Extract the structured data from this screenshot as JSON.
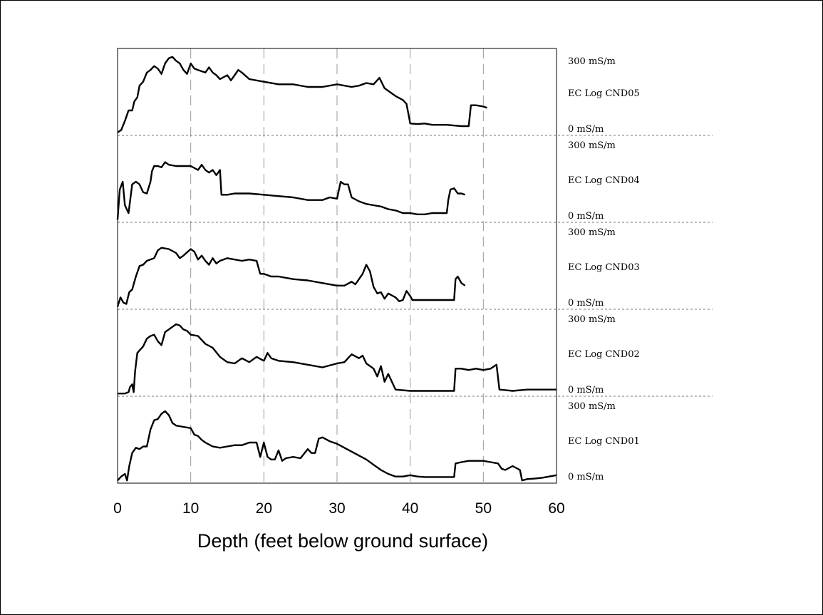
{
  "chart_data": {
    "type": "line",
    "xlabel": "Depth (feet below ground surface)",
    "xlim": [
      0,
      60
    ],
    "xticks": [
      0,
      10,
      20,
      30,
      40,
      50,
      60
    ],
    "ylim": [
      0,
      300
    ],
    "y_unit": "mS/m",
    "top_label": "300 mS/m",
    "bottom_label": "0 mS/m",
    "grid": "vertical dashed lines at x ticks; dashed horizontal separators between panels",
    "series": [
      {
        "name": "EC Log CND05",
        "points": [
          [
            0,
            6
          ],
          [
            0.5,
            15
          ],
          [
            1,
            50
          ],
          [
            1.5,
            90
          ],
          [
            2,
            90
          ],
          [
            2.3,
            125
          ],
          [
            2.7,
            140
          ],
          [
            3,
            185
          ],
          [
            3.5,
            200
          ],
          [
            4,
            235
          ],
          [
            4.5,
            245
          ],
          [
            5,
            260
          ],
          [
            5.5,
            250
          ],
          [
            6,
            230
          ],
          [
            6.5,
            270
          ],
          [
            7,
            290
          ],
          [
            7.5,
            295
          ],
          [
            8,
            280
          ],
          [
            8.5,
            270
          ],
          [
            9,
            245
          ],
          [
            9.5,
            230
          ],
          [
            10,
            270
          ],
          [
            10.5,
            250
          ],
          [
            11,
            245
          ],
          [
            12,
            235
          ],
          [
            12.5,
            255
          ],
          [
            13,
            235
          ],
          [
            13.5,
            225
          ],
          [
            14,
            210
          ],
          [
            15,
            225
          ],
          [
            15.5,
            205
          ],
          [
            16,
            225
          ],
          [
            16.5,
            245
          ],
          [
            17,
            235
          ],
          [
            18,
            210
          ],
          [
            20,
            200
          ],
          [
            22,
            190
          ],
          [
            24,
            190
          ],
          [
            26,
            180
          ],
          [
            28,
            180
          ],
          [
            30,
            190
          ],
          [
            32,
            180
          ],
          [
            33,
            185
          ],
          [
            34,
            195
          ],
          [
            35,
            190
          ],
          [
            35.8,
            215
          ],
          [
            36.5,
            175
          ],
          [
            37,
            165
          ],
          [
            38,
            145
          ],
          [
            39,
            130
          ],
          [
            39.5,
            115
          ],
          [
            40,
            40
          ],
          [
            41,
            38
          ],
          [
            42,
            40
          ],
          [
            43,
            35
          ],
          [
            45,
            35
          ],
          [
            47,
            30
          ],
          [
            48,
            30
          ],
          [
            48.3,
            110
          ],
          [
            49,
            110
          ],
          [
            50,
            105
          ],
          [
            50.5,
            100
          ]
        ]
      },
      {
        "name": "EC Log CND04",
        "points": [
          [
            0,
            5
          ],
          [
            0.3,
            120
          ],
          [
            0.7,
            150
          ],
          [
            1,
            60
          ],
          [
            1.5,
            30
          ],
          [
            2,
            140
          ],
          [
            2.5,
            150
          ],
          [
            3,
            140
          ],
          [
            3.5,
            110
          ],
          [
            4,
            105
          ],
          [
            4.5,
            150
          ],
          [
            4.7,
            190
          ],
          [
            5,
            210
          ],
          [
            5.5,
            210
          ],
          [
            6,
            205
          ],
          [
            6.5,
            225
          ],
          [
            7,
            215
          ],
          [
            8,
            210
          ],
          [
            9,
            210
          ],
          [
            10,
            210
          ],
          [
            11,
            195
          ],
          [
            11.5,
            215
          ],
          [
            12,
            195
          ],
          [
            12.5,
            185
          ],
          [
            13,
            195
          ],
          [
            13.5,
            175
          ],
          [
            14,
            195
          ],
          [
            14.2,
            100
          ],
          [
            15,
            100
          ],
          [
            16,
            105
          ],
          [
            18,
            105
          ],
          [
            20,
            100
          ],
          [
            22,
            95
          ],
          [
            24,
            90
          ],
          [
            26,
            80
          ],
          [
            28,
            80
          ],
          [
            29,
            90
          ],
          [
            30,
            85
          ],
          [
            30.5,
            150
          ],
          [
            31,
            140
          ],
          [
            31.5,
            140
          ],
          [
            32,
            90
          ],
          [
            33,
            75
          ],
          [
            34,
            65
          ],
          [
            35,
            60
          ],
          [
            36,
            55
          ],
          [
            37,
            45
          ],
          [
            38,
            40
          ],
          [
            39,
            30
          ],
          [
            40,
            30
          ],
          [
            41,
            25
          ],
          [
            42,
            25
          ],
          [
            43,
            30
          ],
          [
            44,
            30
          ],
          [
            45,
            30
          ],
          [
            45.2,
            80
          ],
          [
            45.5,
            120
          ],
          [
            46,
            125
          ],
          [
            46.5,
            105
          ],
          [
            47,
            105
          ],
          [
            47.5,
            100
          ]
        ]
      },
      {
        "name": "EC Log CND03",
        "points": [
          [
            0,
            5
          ],
          [
            0.4,
            40
          ],
          [
            0.8,
            20
          ],
          [
            1.2,
            15
          ],
          [
            1.6,
            60
          ],
          [
            2,
            70
          ],
          [
            2.5,
            120
          ],
          [
            3,
            160
          ],
          [
            3.5,
            165
          ],
          [
            4,
            180
          ],
          [
            5,
            190
          ],
          [
            5.5,
            220
          ],
          [
            6,
            230
          ],
          [
            7,
            225
          ],
          [
            8,
            210
          ],
          [
            8.5,
            190
          ],
          [
            9,
            200
          ],
          [
            10,
            225
          ],
          [
            10.5,
            215
          ],
          [
            11,
            185
          ],
          [
            11.5,
            200
          ],
          [
            12,
            180
          ],
          [
            12.5,
            165
          ],
          [
            13,
            190
          ],
          [
            13.5,
            170
          ],
          [
            14,
            180
          ],
          [
            15,
            190
          ],
          [
            16,
            185
          ],
          [
            17,
            180
          ],
          [
            18,
            185
          ],
          [
            19,
            180
          ],
          [
            19.5,
            130
          ],
          [
            20,
            130
          ],
          [
            21,
            120
          ],
          [
            22,
            120
          ],
          [
            24,
            110
          ],
          [
            26,
            105
          ],
          [
            28,
            95
          ],
          [
            30,
            85
          ],
          [
            31,
            85
          ],
          [
            32,
            100
          ],
          [
            32.5,
            90
          ],
          [
            33,
            110
          ],
          [
            33.5,
            130
          ],
          [
            34,
            165
          ],
          [
            34.5,
            140
          ],
          [
            35,
            80
          ],
          [
            35.5,
            55
          ],
          [
            36,
            60
          ],
          [
            36.5,
            35
          ],
          [
            37,
            55
          ],
          [
            38,
            40
          ],
          [
            38.5,
            25
          ],
          [
            39,
            30
          ],
          [
            39.5,
            65
          ],
          [
            40,
            45
          ],
          [
            40.3,
            30
          ],
          [
            42,
            30
          ],
          [
            44,
            30
          ],
          [
            46,
            30
          ],
          [
            46.2,
            110
          ],
          [
            46.5,
            120
          ],
          [
            47,
            95
          ],
          [
            47.5,
            85
          ]
        ]
      },
      {
        "name": "EC Log CND02",
        "points": [
          [
            0,
            5
          ],
          [
            1,
            5
          ],
          [
            1.5,
            10
          ],
          [
            1.7,
            30
          ],
          [
            2,
            40
          ],
          [
            2.2,
            10
          ],
          [
            2.4,
            90
          ],
          [
            2.7,
            160
          ],
          [
            3,
            170
          ],
          [
            3.5,
            185
          ],
          [
            4,
            215
          ],
          [
            4.5,
            225
          ],
          [
            5,
            230
          ],
          [
            5.5,
            205
          ],
          [
            6,
            190
          ],
          [
            6.5,
            240
          ],
          [
            7,
            250
          ],
          [
            7.5,
            260
          ],
          [
            8,
            270
          ],
          [
            8.5,
            265
          ],
          [
            9,
            250
          ],
          [
            9.5,
            245
          ],
          [
            10,
            230
          ],
          [
            11,
            225
          ],
          [
            12,
            195
          ],
          [
            13,
            180
          ],
          [
            14,
            145
          ],
          [
            15,
            125
          ],
          [
            16,
            120
          ],
          [
            17,
            140
          ],
          [
            18,
            125
          ],
          [
            19,
            145
          ],
          [
            20,
            130
          ],
          [
            20.5,
            160
          ],
          [
            21,
            140
          ],
          [
            22,
            130
          ],
          [
            24,
            125
          ],
          [
            26,
            115
          ],
          [
            28,
            105
          ],
          [
            30,
            120
          ],
          [
            31,
            125
          ],
          [
            32,
            155
          ],
          [
            33,
            140
          ],
          [
            33.5,
            150
          ],
          [
            34,
            120
          ],
          [
            35,
            100
          ],
          [
            35.5,
            70
          ],
          [
            36,
            110
          ],
          [
            36.5,
            50
          ],
          [
            37,
            80
          ],
          [
            37.5,
            50
          ],
          [
            38,
            20
          ],
          [
            40,
            15
          ],
          [
            42,
            15
          ],
          [
            44,
            15
          ],
          [
            46,
            15
          ],
          [
            46.2,
            100
          ],
          [
            47,
            100
          ],
          [
            48,
            95
          ],
          [
            49,
            100
          ],
          [
            50,
            95
          ],
          [
            51,
            100
          ],
          [
            51.8,
            115
          ],
          [
            52.2,
            20
          ],
          [
            53,
            18
          ],
          [
            54,
            15
          ],
          [
            56,
            20
          ],
          [
            58,
            20
          ],
          [
            60,
            20
          ]
        ]
      },
      {
        "name": "EC Log CND01",
        "points": [
          [
            0,
            5
          ],
          [
            0.5,
            20
          ],
          [
            1,
            30
          ],
          [
            1.3,
            5
          ],
          [
            1.6,
            60
          ],
          [
            2,
            110
          ],
          [
            2.5,
            130
          ],
          [
            3,
            125
          ],
          [
            3.5,
            135
          ],
          [
            4,
            135
          ],
          [
            4.2,
            160
          ],
          [
            4.5,
            200
          ],
          [
            5,
            235
          ],
          [
            5.5,
            240
          ],
          [
            6,
            260
          ],
          [
            6.5,
            270
          ],
          [
            7,
            255
          ],
          [
            7.5,
            225
          ],
          [
            8,
            215
          ],
          [
            9,
            210
          ],
          [
            10,
            205
          ],
          [
            10.5,
            180
          ],
          [
            11,
            175
          ],
          [
            11.5,
            160
          ],
          [
            12,
            150
          ],
          [
            13,
            135
          ],
          [
            14,
            130
          ],
          [
            15,
            135
          ],
          [
            16,
            140
          ],
          [
            17,
            140
          ],
          [
            18,
            150
          ],
          [
            19,
            150
          ],
          [
            19.5,
            95
          ],
          [
            20,
            150
          ],
          [
            20.5,
            95
          ],
          [
            21,
            85
          ],
          [
            21.5,
            85
          ],
          [
            22,
            120
          ],
          [
            22.5,
            80
          ],
          [
            23,
            90
          ],
          [
            24,
            95
          ],
          [
            25,
            90
          ],
          [
            26,
            125
          ],
          [
            26.5,
            110
          ],
          [
            27,
            110
          ],
          [
            27.5,
            165
          ],
          [
            28,
            170
          ],
          [
            29,
            155
          ],
          [
            30,
            145
          ],
          [
            31,
            130
          ],
          [
            32,
            115
          ],
          [
            33,
            100
          ],
          [
            34,
            85
          ],
          [
            35,
            65
          ],
          [
            36,
            45
          ],
          [
            37,
            30
          ],
          [
            38,
            20
          ],
          [
            39,
            20
          ],
          [
            40,
            25
          ],
          [
            41,
            20
          ],
          [
            42,
            18
          ],
          [
            44,
            18
          ],
          [
            46,
            18
          ],
          [
            46.2,
            70
          ],
          [
            47,
            75
          ],
          [
            48,
            80
          ],
          [
            49,
            80
          ],
          [
            50,
            80
          ],
          [
            51,
            75
          ],
          [
            52,
            70
          ],
          [
            52.5,
            50
          ],
          [
            53,
            45
          ],
          [
            54,
            60
          ],
          [
            55,
            45
          ],
          [
            55.3,
            5
          ],
          [
            56,
            10
          ],
          [
            57,
            12
          ],
          [
            58,
            15
          ],
          [
            59,
            20
          ],
          [
            60,
            25
          ]
        ]
      }
    ]
  }
}
